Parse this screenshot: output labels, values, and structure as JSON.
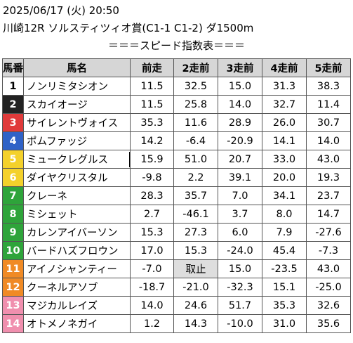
{
  "header": {
    "line1": "2025/06/17 (火) 20:50",
    "line2": "川崎12R ソルスティツィオ賞(C1-1 C1-2) ダ1500m",
    "line3": "＝＝＝スピード指数表＝＝＝"
  },
  "columns": [
    "馬番",
    "馬名",
    "前走",
    "2走前",
    "3走前",
    "4走前",
    "5走前"
  ],
  "gate_colors": {
    "1": {
      "bg": "#ffffff",
      "fg": "#000000"
    },
    "2": {
      "bg": "#222222",
      "fg": "#ffffff"
    },
    "3": {
      "bg": "#e03a3a",
      "fg": "#ffffff"
    },
    "4": {
      "bg": "#2f62c7",
      "fg": "#ffffff"
    },
    "5": {
      "bg": "#f4d12b",
      "fg": "#ffffff"
    },
    "6": {
      "bg": "#2ea43a",
      "fg": "#ffffff"
    },
    "7": {
      "bg": "#f08a25",
      "fg": "#ffffff"
    },
    "8": {
      "bg": "#f08fae",
      "fg": "#ffffff"
    }
  },
  "rows": [
    {
      "num": "1",
      "gate": 1,
      "name": "ノンリミタシオン",
      "vals": [
        "11.5",
        "32.5",
        "15.0",
        "31.3",
        "38.3"
      ]
    },
    {
      "num": "2",
      "gate": 2,
      "name": "スカイオージ",
      "vals": [
        "11.5",
        "25.8",
        "14.0",
        "32.7",
        "11.4"
      ]
    },
    {
      "num": "3",
      "gate": 3,
      "name": "サイレントヴォイス",
      "vals": [
        "35.3",
        "11.6",
        "28.9",
        "26.0",
        "30.7"
      ]
    },
    {
      "num": "4",
      "gate": 4,
      "name": "ポムファッジ",
      "vals": [
        "14.2",
        "-6.4",
        "-20.9",
        "14.1",
        "14.0"
      ]
    },
    {
      "num": "5",
      "gate": 5,
      "name": "ミュークレグルス",
      "vals": [
        "15.9",
        "51.0",
        "20.7",
        "33.0",
        "43.0"
      ]
    },
    {
      "num": "6",
      "gate": 5,
      "name": "ダイヤクリスタル",
      "vals": [
        "-9.8",
        "2.2",
        "39.1",
        "20.0",
        "19.3"
      ]
    },
    {
      "num": "7",
      "gate": 6,
      "name": "クレーネ",
      "vals": [
        "28.3",
        "35.7",
        "7.0",
        "34.1",
        "23.7"
      ]
    },
    {
      "num": "8",
      "gate": 6,
      "name": "ミシェット",
      "vals": [
        "2.7",
        "-46.1",
        "3.7",
        "8.0",
        "14.7"
      ]
    },
    {
      "num": "9",
      "gate": 6,
      "name": "カレンアイバーソン",
      "vals": [
        "15.3",
        "27.3",
        "6.0",
        "7.9",
        "-27.6"
      ]
    },
    {
      "num": "10",
      "gate": 6,
      "name": "バードハズフロウン",
      "vals": [
        "17.0",
        "15.3",
        "-24.0",
        "45.4",
        "-7.3"
      ]
    },
    {
      "num": "11",
      "gate": 7,
      "name": "アイノシャンティー",
      "vals": [
        "-7.0",
        "取止",
        "15.0",
        "-23.5",
        "43.0"
      ]
    },
    {
      "num": "12",
      "gate": 7,
      "name": "クーネルアソブ",
      "vals": [
        "-18.7",
        "-21.0",
        "-32.3",
        "15.1",
        "-25.0"
      ]
    },
    {
      "num": "13",
      "gate": 8,
      "name": "マジカルレイズ",
      "vals": [
        "14.0",
        "24.6",
        "51.7",
        "35.3",
        "32.6"
      ]
    },
    {
      "num": "14",
      "gate": 8,
      "name": "オトメノネガイ",
      "vals": [
        "1.2",
        "14.3",
        "-10.0",
        "31.0",
        "35.6"
      ]
    }
  ],
  "cancel_label": "取止"
}
